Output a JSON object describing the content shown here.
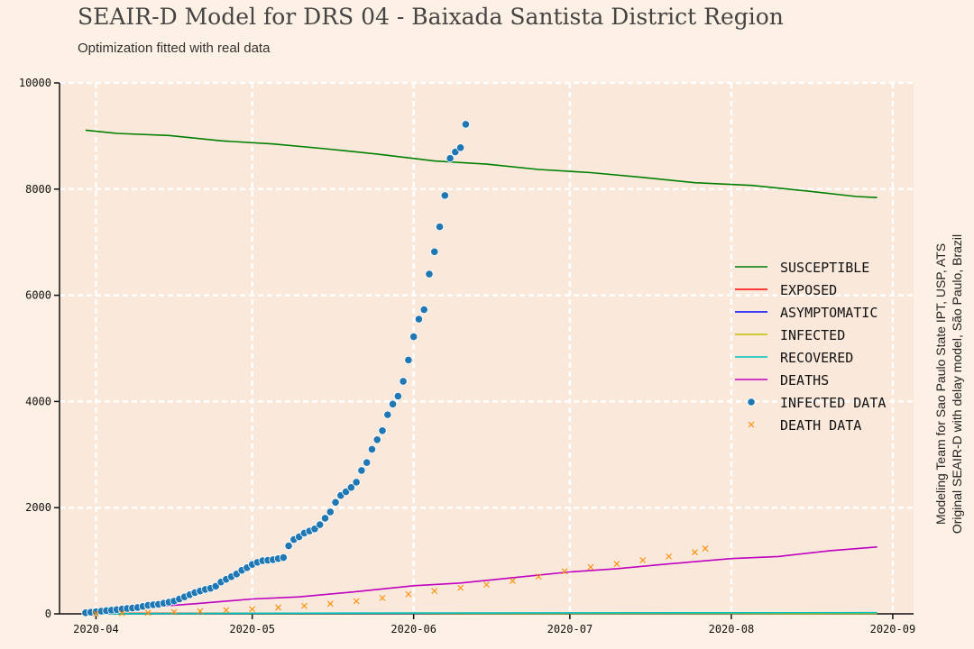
{
  "header": {
    "title": "SEAIR-D Model for DRS 04 - Baixada Santista District Region",
    "subtitle": "Optimization fitted with real data"
  },
  "side_note": {
    "line1": "Modeling Team for Sao Paulo State IPT, USP, ATS",
    "line2": "Original SEAIR-D with delay model, São Paulo, Brazil"
  },
  "colors": {
    "background": "#fdf0e4",
    "plot_background": "#fae8db",
    "grid": "#ffffff"
  },
  "chart_data": {
    "type": "line",
    "title": "SEAIR-D Model for DRS 04 - Baixada Santista District Region",
    "xlabel": "",
    "ylabel": "",
    "ylim": [
      0,
      10000
    ],
    "xlim": [
      "2020-03-25",
      "2020-09-05"
    ],
    "grid": true,
    "legend_position": "right",
    "x_ticks": [
      "2020-04",
      "2020-05",
      "2020-06",
      "2020-07",
      "2020-08",
      "2020-09"
    ],
    "y_ticks": [
      0,
      2000,
      4000,
      6000,
      8000,
      10000
    ],
    "series": [
      {
        "name": "SUSCEPTIBLE",
        "kind": "line",
        "color": "#008000",
        "x": [
          "2020-03-30",
          "2020-04-05",
          "2020-04-15",
          "2020-04-25",
          "2020-05-05",
          "2020-05-15",
          "2020-05-25",
          "2020-06-05",
          "2020-06-15",
          "2020-06-25",
          "2020-07-05",
          "2020-07-15",
          "2020-07-25",
          "2020-08-05",
          "2020-08-15",
          "2020-08-25",
          "2020-08-29"
        ],
        "y": [
          9110,
          9050,
          9010,
          8910,
          8850,
          8760,
          8660,
          8530,
          8470,
          8370,
          8310,
          8220,
          8120,
          8070,
          7970,
          7860,
          7840
        ]
      },
      {
        "name": "EXPOSED",
        "kind": "line",
        "color": "#ff0000",
        "x": [
          "2020-03-30",
          "2020-05-01",
          "2020-06-01",
          "2020-07-01",
          "2020-08-01",
          "2020-08-29"
        ],
        "y": [
          10,
          12,
          10,
          8,
          6,
          5
        ]
      },
      {
        "name": "ASYMPTOMATIC",
        "kind": "line",
        "color": "#0000ff",
        "x": [
          "2020-03-30",
          "2020-05-01",
          "2020-06-01",
          "2020-07-01",
          "2020-08-01",
          "2020-08-29"
        ],
        "y": [
          5,
          8,
          7,
          6,
          5,
          4
        ]
      },
      {
        "name": "INFECTED",
        "kind": "line",
        "color": "#bfbf00",
        "x": [
          "2020-03-30",
          "2020-05-01",
          "2020-06-01",
          "2020-07-01",
          "2020-08-01",
          "2020-08-29"
        ],
        "y": [
          5,
          10,
          9,
          7,
          6,
          5
        ]
      },
      {
        "name": "RECOVERED",
        "kind": "line",
        "color": "#00bfbf",
        "x": [
          "2020-03-30",
          "2020-05-01",
          "2020-06-01",
          "2020-07-01",
          "2020-08-01",
          "2020-08-29"
        ],
        "y": [
          0,
          10,
          15,
          18,
          20,
          22
        ]
      },
      {
        "name": "DEATHS",
        "kind": "line",
        "color": "#bf00bf",
        "x": [
          "2020-03-30",
          "2020-04-10",
          "2020-04-20",
          "2020-05-01",
          "2020-05-10",
          "2020-05-20",
          "2020-06-01",
          "2020-06-10",
          "2020-06-20",
          "2020-07-01",
          "2020-07-10",
          "2020-07-20",
          "2020-08-01",
          "2020-08-10",
          "2020-08-20",
          "2020-08-29"
        ],
        "y": [
          60,
          120,
          190,
          280,
          320,
          410,
          530,
          580,
          680,
          790,
          850,
          940,
          1040,
          1080,
          1190,
          1260
        ]
      },
      {
        "name": "INFECTED DATA",
        "kind": "scatter",
        "marker": "circle",
        "color": "#1f77b4",
        "x": [
          "2020-03-30",
          "2020-03-31",
          "2020-04-01",
          "2020-04-02",
          "2020-04-03",
          "2020-04-04",
          "2020-04-05",
          "2020-04-06",
          "2020-04-07",
          "2020-04-08",
          "2020-04-09",
          "2020-04-10",
          "2020-04-11",
          "2020-04-12",
          "2020-04-13",
          "2020-04-14",
          "2020-04-15",
          "2020-04-16",
          "2020-04-17",
          "2020-04-18",
          "2020-04-19",
          "2020-04-20",
          "2020-04-21",
          "2020-04-22",
          "2020-04-23",
          "2020-04-24",
          "2020-04-25",
          "2020-04-26",
          "2020-04-27",
          "2020-04-28",
          "2020-04-29",
          "2020-04-30",
          "2020-05-01",
          "2020-05-02",
          "2020-05-03",
          "2020-05-04",
          "2020-05-05",
          "2020-05-06",
          "2020-05-07",
          "2020-05-08",
          "2020-05-09",
          "2020-05-10",
          "2020-05-11",
          "2020-05-12",
          "2020-05-13",
          "2020-05-14",
          "2020-05-15",
          "2020-05-16",
          "2020-05-17",
          "2020-05-18",
          "2020-05-19",
          "2020-05-20",
          "2020-05-21",
          "2020-05-22",
          "2020-05-23",
          "2020-05-24",
          "2020-05-25",
          "2020-05-26",
          "2020-05-27",
          "2020-05-28",
          "2020-05-29",
          "2020-05-30",
          "2020-05-31",
          "2020-06-01",
          "2020-06-02",
          "2020-06-03",
          "2020-06-04",
          "2020-06-05",
          "2020-06-06",
          "2020-06-07",
          "2020-06-08",
          "2020-06-09",
          "2020-06-10",
          "2020-06-11"
        ],
        "y": [
          20,
          30,
          40,
          50,
          60,
          70,
          80,
          90,
          100,
          110,
          120,
          140,
          160,
          170,
          180,
          200,
          220,
          240,
          280,
          320,
          360,
          400,
          430,
          460,
          480,
          520,
          600,
          650,
          700,
          750,
          820,
          870,
          930,
          970,
          1000,
          1010,
          1020,
          1040,
          1060,
          1280,
          1400,
          1450,
          1520,
          1560,
          1600,
          1680,
          1800,
          1920,
          2100,
          2230,
          2300,
          2380,
          2480,
          2700,
          2850,
          3100,
          3280,
          3450,
          3750,
          3950,
          4100,
          4380,
          4780,
          5220,
          5550,
          5730,
          6400,
          6820,
          7290,
          7880,
          8580,
          8700,
          8780,
          9220
        ]
      },
      {
        "name": "DEATH DATA",
        "kind": "scatter",
        "marker": "x",
        "color": "#ff8c00",
        "x": [
          "2020-04-01",
          "2020-04-06",
          "2020-04-11",
          "2020-04-16",
          "2020-04-21",
          "2020-04-26",
          "2020-05-01",
          "2020-05-06",
          "2020-05-11",
          "2020-05-16",
          "2020-05-21",
          "2020-05-26",
          "2020-05-31",
          "2020-06-05",
          "2020-06-10",
          "2020-06-15",
          "2020-06-20",
          "2020-06-25",
          "2020-06-30",
          "2020-07-05",
          "2020-07-10",
          "2020-07-15",
          "2020-07-20",
          "2020-07-25",
          "2020-07-27"
        ],
        "y": [
          5,
          10,
          20,
          35,
          50,
          70,
          90,
          120,
          150,
          190,
          240,
          300,
          370,
          430,
          490,
          550,
          620,
          700,
          800,
          880,
          940,
          1010,
          1080,
          1160,
          1230
        ]
      }
    ]
  }
}
